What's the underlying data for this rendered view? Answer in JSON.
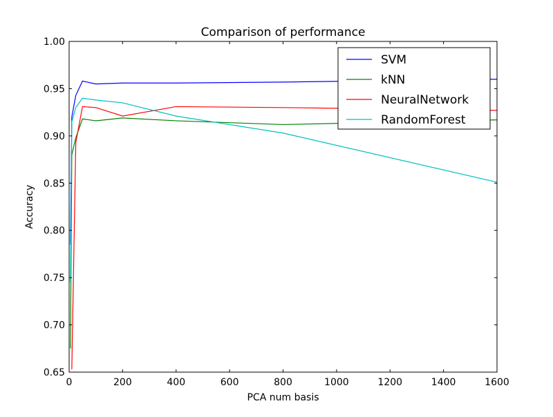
{
  "chart_data": {
    "type": "line",
    "title": "Comparison of performance",
    "xlabel": "PCA num basis",
    "ylabel": "Accuracy",
    "xlim": [
      0,
      1600
    ],
    "ylim": [
      0.65,
      1.0
    ],
    "xticks": [
      0,
      200,
      400,
      600,
      800,
      1000,
      1200,
      1400,
      1600
    ],
    "xtick_labels": [
      "0",
      "200",
      "400",
      "600",
      "800",
      "1000",
      "1200",
      "1400",
      "1600"
    ],
    "yticks": [
      0.65,
      0.7,
      0.75,
      0.8,
      0.85,
      0.9,
      0.95,
      1.0
    ],
    "ytick_labels": [
      "0.65",
      "0.70",
      "0.75",
      "0.80",
      "0.85",
      "0.90",
      "0.95",
      "1.00"
    ],
    "grid": false,
    "legend_position": "top-right",
    "series": [
      {
        "name": "SVM",
        "color": "#0000ff",
        "x": [
          5,
          10,
          25,
          50,
          100,
          200,
          400,
          800,
          1600
        ],
        "y": [
          0.785,
          0.92,
          0.943,
          0.958,
          0.955,
          0.956,
          0.956,
          0.957,
          0.96
        ]
      },
      {
        "name": "kNN",
        "color": "#008000",
        "x": [
          5,
          10,
          25,
          50,
          100,
          200,
          400,
          800,
          1600
        ],
        "y": [
          0.675,
          0.88,
          0.898,
          0.918,
          0.916,
          0.919,
          0.916,
          0.912,
          0.917
        ]
      },
      {
        "name": "NeuralNetwork",
        "color": "#ff0000",
        "x": [
          10,
          25,
          50,
          100,
          200,
          400,
          800,
          1600
        ],
        "y": [
          0.653,
          0.893,
          0.931,
          0.93,
          0.921,
          0.931,
          0.93,
          0.927
        ]
      },
      {
        "name": "RandomForest",
        "color": "#00bfbf",
        "x": [
          5,
          10,
          25,
          50,
          100,
          200,
          400,
          800,
          1600
        ],
        "y": [
          0.745,
          0.915,
          0.93,
          0.94,
          0.938,
          0.935,
          0.921,
          0.903,
          0.851
        ]
      }
    ]
  }
}
